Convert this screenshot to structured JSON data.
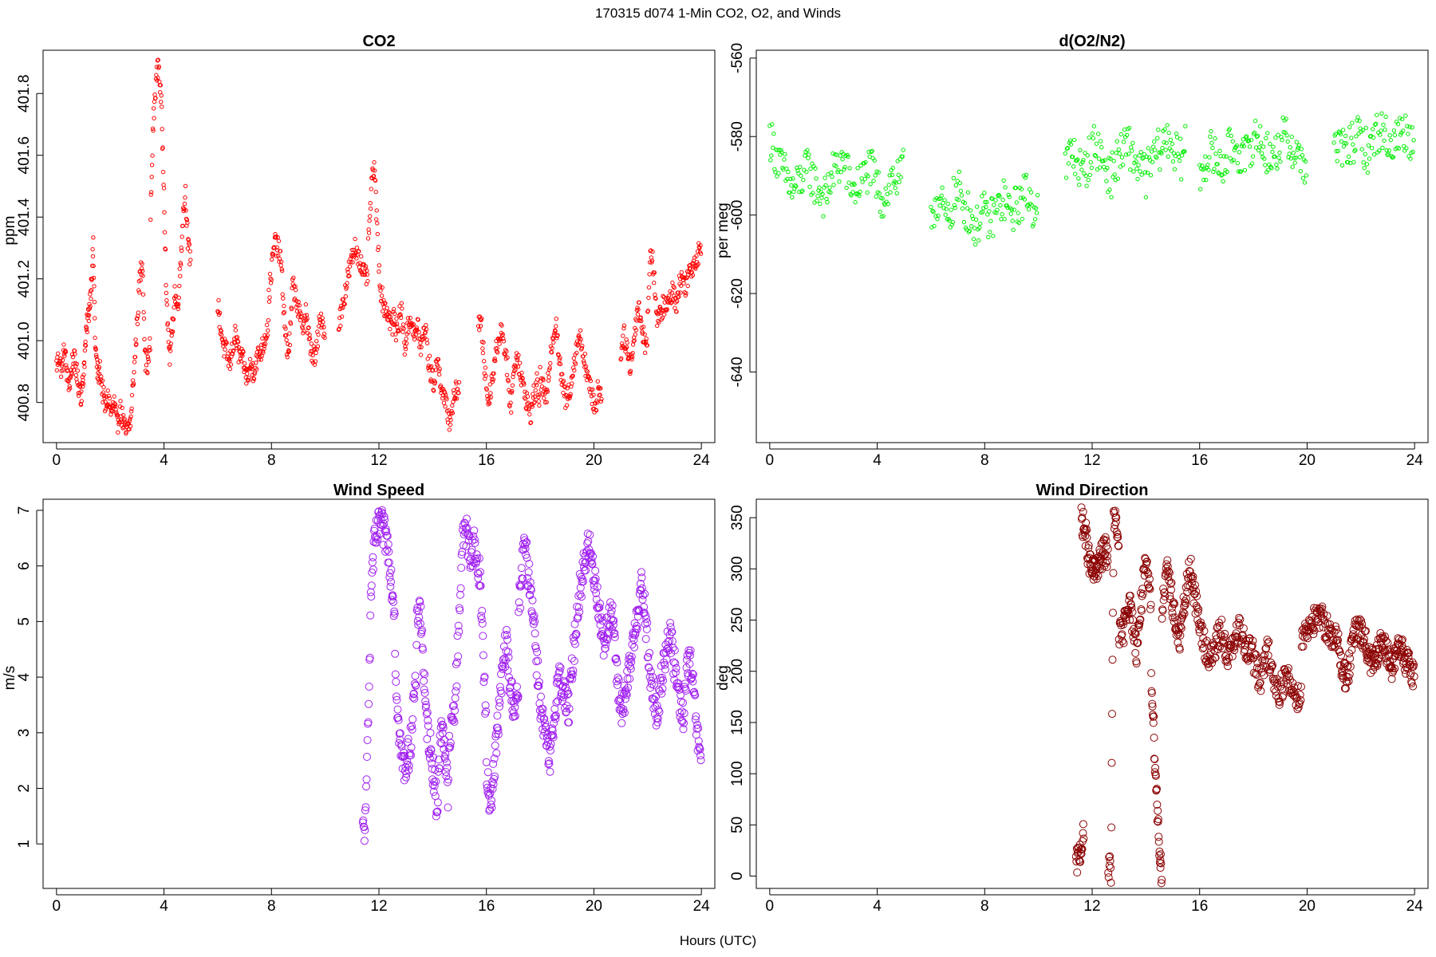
{
  "figure": {
    "title": "170315   d074   1-Min CO2, O2, and Winds",
    "xlabel": "Hours (UTC)"
  },
  "chart_data": [
    {
      "type": "scatter",
      "title": "CO2",
      "ylabel": "ppm",
      "xlim": [
        -0.5,
        24.5
      ],
      "ylim": [
        400.67,
        401.94
      ],
      "xticks": [
        "0",
        "4",
        "8",
        "12",
        "16",
        "20",
        "24"
      ],
      "yticks": [
        "400.8",
        "401.0",
        "401.2",
        "401.4",
        "401.6",
        "401.8"
      ],
      "color": "#ff0000",
      "segments": [
        {
          "x0": 0.0,
          "x1": 0.9,
          "y": [
            400.92,
            400.95,
            400.9,
            400.98,
            400.88,
            400.86,
            400.94,
            400.93,
            400.86,
            400.84
          ]
        },
        {
          "x0": 0.9,
          "x1": 1.6,
          "y": [
            400.82,
            400.86,
            400.96,
            401.05,
            401.1,
            401.18,
            401.3,
            400.98,
            400.9,
            400.88
          ]
        },
        {
          "x0": 1.6,
          "x1": 2.8,
          "y": [
            400.92,
            400.84,
            400.78,
            400.82,
            400.76,
            400.8,
            400.72,
            400.78,
            400.74,
            400.7,
            400.72,
            400.76
          ]
        },
        {
          "x0": 2.8,
          "x1": 3.5,
          "y": [
            400.8,
            400.92,
            401.06,
            401.2,
            401.26,
            400.94,
            400.92,
            401.0
          ]
        },
        {
          "x0": 3.5,
          "x1": 4.2,
          "y": [
            401.4,
            401.7,
            401.84,
            401.9,
            401.76,
            401.5,
            401.1,
            400.98
          ]
        },
        {
          "x0": 4.2,
          "x1": 5.0,
          "y": [
            400.94,
            401.02,
            401.16,
            401.1,
            401.22,
            401.4,
            401.48,
            401.3,
            401.26
          ]
        },
        {
          "x0": 6.0,
          "x1": 7.0,
          "y": [
            401.12,
            401.04,
            400.98,
            400.96,
            400.92,
            400.98,
            401.02,
            400.96,
            400.94,
            400.92
          ]
        },
        {
          "x0": 7.0,
          "x1": 7.9,
          "y": [
            400.9,
            400.88,
            400.92,
            400.9,
            400.94,
            400.96,
            400.98,
            401.02,
            401.06
          ]
        },
        {
          "x0": 7.9,
          "x1": 8.8,
          "y": [
            401.14,
            401.24,
            401.32,
            401.3,
            401.26,
            401.1,
            400.96,
            401.0,
            401.2
          ]
        },
        {
          "x0": 8.8,
          "x1": 10.0,
          "y": [
            401.18,
            401.14,
            401.08,
            401.04,
            401.1,
            401.0,
            400.96,
            400.94,
            401.04,
            401.08,
            401.0
          ]
        },
        {
          "x0": 10.5,
          "x1": 11.6,
          "y": [
            401.06,
            401.1,
            401.16,
            401.22,
            401.26,
            401.3,
            401.28,
            401.24,
            401.2,
            401.22
          ]
        },
        {
          "x0": 11.6,
          "x1": 12.6,
          "y": [
            401.3,
            401.48,
            401.58,
            401.36,
            401.18,
            401.12,
            401.1,
            401.08,
            401.04,
            401.1
          ]
        },
        {
          "x0": 12.6,
          "x1": 13.8,
          "y": [
            401.02,
            401.06,
            401.1,
            400.98,
            401.04,
            401.08,
            401.0,
            401.06,
            400.96,
            401.04,
            401.02
          ]
        },
        {
          "x0": 13.8,
          "x1": 15.0,
          "y": [
            400.96,
            400.9,
            400.86,
            400.94,
            400.88,
            400.82,
            400.78,
            400.74,
            400.8,
            400.84,
            400.86
          ]
        },
        {
          "x0": 15.7,
          "x1": 16.8,
          "y": [
            401.06,
            401.04,
            400.9,
            400.8,
            400.86,
            400.94,
            401.0,
            401.04,
            400.98,
            400.9
          ]
        },
        {
          "x0": 16.8,
          "x1": 18.0,
          "y": [
            400.84,
            400.8,
            400.92,
            400.96,
            400.88,
            400.84,
            400.8,
            400.76,
            400.82,
            400.86,
            400.8
          ]
        },
        {
          "x0": 18.0,
          "x1": 19.2,
          "y": [
            400.88,
            400.84,
            400.8,
            400.94,
            401.02,
            401.06,
            400.92,
            400.86,
            400.8,
            400.84,
            400.88
          ]
        },
        {
          "x0": 19.2,
          "x1": 20.3,
          "y": [
            400.9,
            400.96,
            401.02,
            400.98,
            400.92,
            400.86,
            400.82,
            400.78,
            400.86,
            400.8
          ]
        },
        {
          "x0": 21.0,
          "x1": 22.0,
          "y": [
            400.96,
            401.02,
            400.98,
            400.92,
            400.96,
            401.06,
            401.12,
            401.04,
            401.0,
            400.96
          ]
        },
        {
          "x0": 22.0,
          "x1": 24.0,
          "y": [
            401.1,
            401.3,
            401.22,
            401.06,
            401.08,
            401.12,
            401.1,
            401.14,
            401.16,
            401.12,
            401.18,
            401.2,
            401.18,
            401.22,
            401.24,
            401.26,
            401.28,
            401.3
          ]
        }
      ]
    },
    {
      "type": "scatter",
      "title": "d(O2/N2)",
      "ylabel": "per meg",
      "xlim": [
        -0.5,
        24.5
      ],
      "ylim": [
        -658,
        -558
      ],
      "xticks": [
        "0",
        "4",
        "8",
        "12",
        "16",
        "20",
        "24"
      ],
      "yticks": [
        "-640",
        "-620",
        "-600",
        "-580",
        "-560"
      ],
      "color": "#00ee00",
      "segments": [
        {
          "x0": 0.0,
          "x1": 5.0,
          "y": [
            -580,
            -584,
            -588,
            -590,
            -594,
            -592,
            -590,
            -588,
            -592,
            -594,
            -596,
            -590,
            -588,
            -586,
            -590,
            -594,
            -592,
            -590,
            -588,
            -592,
            -596,
            -594,
            -590,
            -592,
            -588
          ]
        },
        {
          "x0": 6.0,
          "x1": 10.0,
          "y": [
            -600,
            -596,
            -598,
            -602,
            -596,
            -594,
            -598,
            -600,
            -604,
            -598,
            -602,
            -600,
            -598,
            -596,
            -600,
            -598,
            -596,
            -594,
            -598,
            -596
          ]
        },
        {
          "x0": 11.0,
          "x1": 15.5,
          "y": [
            -588,
            -584,
            -586,
            -590,
            -586,
            -582,
            -584,
            -588,
            -590,
            -586,
            -584,
            -582,
            -586,
            -588,
            -590,
            -586,
            -584,
            -582,
            -580,
            -584,
            -586,
            -582
          ]
        },
        {
          "x0": 16.0,
          "x1": 20.0,
          "y": [
            -590,
            -586,
            -584,
            -586,
            -588,
            -584,
            -582,
            -584,
            -586,
            -582,
            -580,
            -582,
            -584,
            -586,
            -582,
            -580,
            -582,
            -584,
            -586,
            -588
          ]
        },
        {
          "x0": 21.0,
          "x1": 24.0,
          "y": [
            -584,
            -582,
            -584,
            -582,
            -580,
            -582,
            -584,
            -580,
            -578,
            -580,
            -582,
            -580,
            -578,
            -580,
            -582
          ]
        }
      ]
    },
    {
      "type": "scatter",
      "title": "Wind Speed",
      "ylabel": "m/s",
      "xlim": [
        -0.5,
        24.5
      ],
      "ylim": [
        0.2,
        7.2
      ],
      "xticks": [
        "0",
        "4",
        "8",
        "12",
        "16",
        "20",
        "24"
      ],
      "yticks": [
        "1",
        "2",
        "3",
        "4",
        "5",
        "6",
        "7"
      ],
      "color": "#a020f0",
      "segments": [
        {
          "x0": 11.4,
          "x1": 12.6,
          "y": [
            1.2,
            1.4,
            3.8,
            5.8,
            6.4,
            6.6,
            6.8,
            6.6,
            6.5,
            6.2,
            5.6,
            5.2
          ]
        },
        {
          "x0": 12.6,
          "x1": 13.4,
          "y": [
            4.4,
            3.2,
            2.6,
            2.4,
            2.5,
            2.8,
            3.6,
            3.8
          ]
        },
        {
          "x0": 13.4,
          "x1": 14.6,
          "y": [
            4.8,
            5.4,
            4.6,
            3.4,
            3.0,
            2.6,
            2.2,
            1.6,
            2.8,
            3.2,
            2.4,
            1.8
          ]
        },
        {
          "x0": 14.6,
          "x1": 15.2,
          "y": [
            2.6,
            3.2,
            3.6,
            4.8,
            6.2,
            6.8
          ]
        },
        {
          "x0": 15.2,
          "x1": 16.0,
          "y": [
            6.8,
            6.4,
            6.2,
            6.4,
            6.0,
            5.8,
            4.4,
            3.0
          ]
        },
        {
          "x0": 16.0,
          "x1": 17.2,
          "y": [
            2.2,
            1.8,
            2.0,
            2.6,
            3.2,
            3.8,
            4.4,
            4.6,
            3.8,
            3.6,
            3.4,
            3.8
          ]
        },
        {
          "x0": 17.2,
          "x1": 18.4,
          "y": [
            5.2,
            5.8,
            6.4,
            6.0,
            5.6,
            5.2,
            4.4,
            3.8,
            3.2,
            3.0,
            2.6,
            2.4
          ]
        },
        {
          "x0": 18.4,
          "x1": 19.6,
          "y": [
            2.6,
            3.2,
            3.8,
            4.0,
            3.8,
            3.6,
            3.4,
            4.0,
            4.6,
            5.2,
            5.6,
            5.8
          ]
        },
        {
          "x0": 19.6,
          "x1": 20.8,
          "y": [
            6.0,
            6.2,
            6.4,
            6.0,
            5.8,
            5.4,
            5.0,
            4.6,
            4.8,
            5.2,
            5.0,
            4.8
          ]
        },
        {
          "x0": 20.8,
          "x1": 22.0,
          "y": [
            4.2,
            3.8,
            3.4,
            3.6,
            3.8,
            4.2,
            4.6,
            5.0,
            5.4,
            5.6,
            5.2,
            4.6
          ]
        },
        {
          "x0": 22.0,
          "x1": 24.0,
          "y": [
            4.4,
            4.0,
            3.6,
            3.2,
            3.8,
            4.2,
            4.6,
            4.8,
            4.4,
            4.0,
            3.6,
            3.2,
            3.8,
            4.4,
            4.0,
            3.4,
            2.8,
            2.4
          ]
        }
      ]
    },
    {
      "type": "scatter",
      "title": "Wind Direction",
      "ylabel": "deg",
      "xlim": [
        -0.5,
        24.5
      ],
      "ylim": [
        -12,
        368
      ],
      "xticks": [
        "0",
        "4",
        "8",
        "12",
        "16",
        "20",
        "24"
      ],
      "yticks": [
        "0",
        "50",
        "100",
        "150",
        "200",
        "250",
        "300",
        "350"
      ],
      "color": "#8b0000",
      "segments": [
        {
          "x0": 11.4,
          "x1": 11.7,
          "y": [
            10,
            20,
            30,
            40
          ]
        },
        {
          "x0": 11.6,
          "x1": 12.6,
          "y": [
            350,
            340,
            330,
            310,
            300,
            295,
            300,
            305,
            310,
            315,
            318,
            312
          ]
        },
        {
          "x0": 12.6,
          "x1": 13.0,
          "y": [
            10,
            5,
            350,
            340,
            320
          ]
        },
        {
          "x0": 13.0,
          "x1": 14.2,
          "y": [
            240,
            230,
            250,
            270,
            260,
            240,
            220,
            250,
            280,
            300,
            290,
            260
          ]
        },
        {
          "x0": 14.2,
          "x1": 14.6,
          "y": [
            200,
            150,
            100,
            60,
            20,
            0
          ]
        },
        {
          "x0": 14.6,
          "x1": 16.0,
          "y": [
            260,
            280,
            300,
            280,
            260,
            240,
            230,
            250,
            270,
            290,
            300,
            280,
            260,
            250
          ]
        },
        {
          "x0": 16.0,
          "x1": 18.0,
          "y": [
            240,
            230,
            220,
            210,
            220,
            230,
            240,
            225,
            215,
            220,
            230,
            240,
            235,
            225,
            220,
            230
          ]
        },
        {
          "x0": 18.0,
          "x1": 19.8,
          "y": [
            210,
            200,
            190,
            210,
            220,
            200,
            185,
            180,
            190,
            195,
            185,
            180,
            175,
            180
          ]
        },
        {
          "x0": 19.8,
          "x1": 21.2,
          "y": [
            230,
            240,
            245,
            250,
            248,
            252,
            250,
            245,
            240,
            235,
            230,
            225
          ]
        },
        {
          "x0": 21.2,
          "x1": 22.2,
          "y": [
            215,
            205,
            195,
            200,
            220,
            235,
            240,
            238,
            232,
            226
          ]
        },
        {
          "x0": 22.2,
          "x1": 24.0,
          "y": [
            220,
            215,
            210,
            205,
            215,
            225,
            230,
            220,
            210,
            205,
            215,
            220,
            225,
            215,
            210,
            205,
            200,
            198
          ]
        }
      ]
    }
  ]
}
